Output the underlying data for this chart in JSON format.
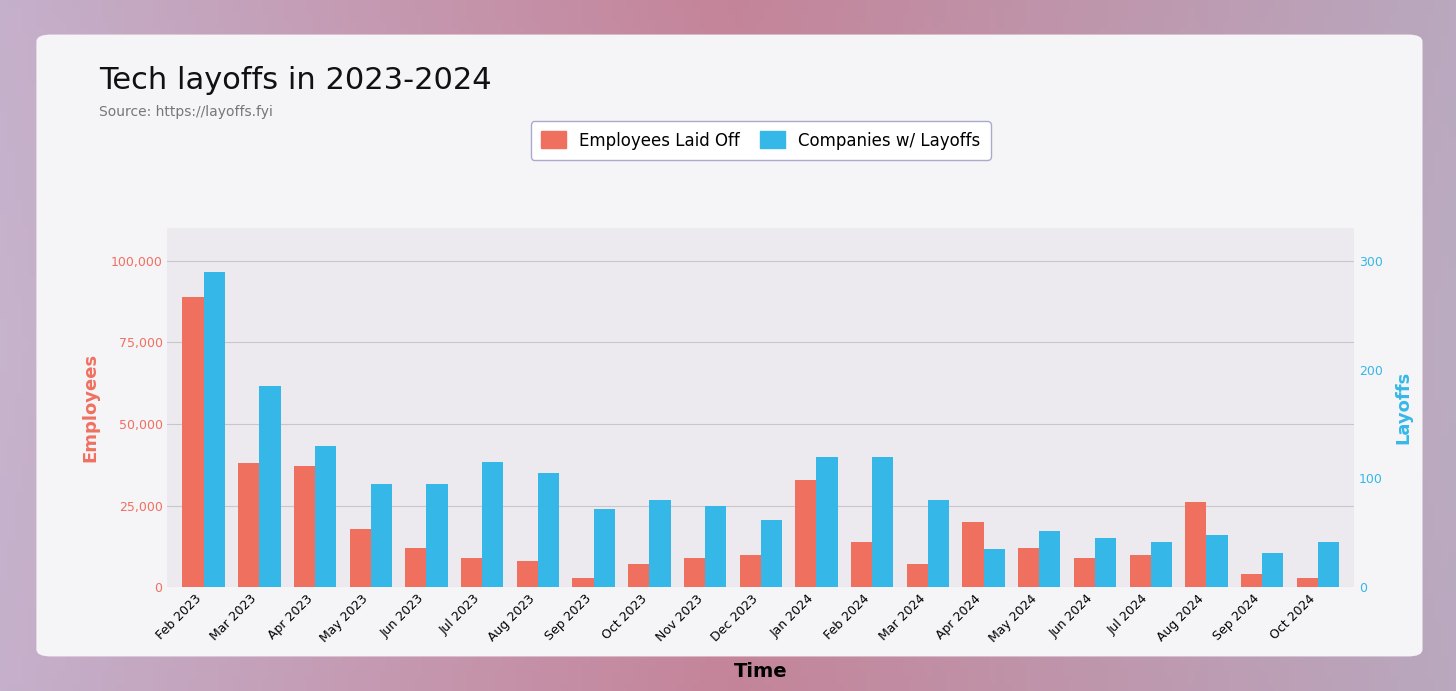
{
  "title": "Tech layoffs in 2023-2024",
  "source": "Source: https://layoffs.fyi",
  "xlabel": "Time",
  "ylabel_left": "Employees",
  "ylabel_right": "Layoffs",
  "bar_color_employees": "#F07060",
  "bar_color_companies": "#35B8E8",
  "legend_labels": [
    "Employees Laid Off",
    "Companies w/ Layoffs"
  ],
  "card_bg": "#F5F4F7",
  "chart_area_bg": "#ECEAEE",
  "categories": [
    "Feb 2023",
    "Mar 2023",
    "Apr 2023",
    "May 2023",
    "Jun 2023",
    "Jul 2023",
    "Aug 2023",
    "Sep 2023",
    "Oct 2023",
    "Nov 2023",
    "Dec 2023",
    "Jan 2024",
    "Feb 2024",
    "Mar 2024",
    "Apr 2024",
    "May 2024",
    "Jun 2024",
    "Jul 2024",
    "Aug 2024",
    "Sep 2024",
    "Oct 2024"
  ],
  "employees_laid_off": [
    89000,
    38000,
    37000,
    18000,
    12000,
    9000,
    8000,
    3000,
    7000,
    9000,
    10000,
    33000,
    14000,
    7000,
    20000,
    12000,
    9000,
    10000,
    26000,
    4000,
    3000
  ],
  "companies_with_layoffs": [
    290,
    185,
    130,
    95,
    95,
    115,
    105,
    72,
    80,
    75,
    62,
    120,
    120,
    80,
    35,
    52,
    45,
    42,
    48,
    32,
    42
  ],
  "ylim_left": [
    0,
    110000
  ],
  "ylim_right": [
    0,
    330
  ],
  "yticks_left": [
    0,
    25000,
    50000,
    75000,
    100000
  ],
  "yticks_right": [
    0,
    100,
    200,
    300
  ],
  "title_fontsize": 22,
  "source_fontsize": 10,
  "axis_label_fontsize": 13,
  "tick_fontsize": 9,
  "legend_fontsize": 12,
  "outer_bg_left": "#C9B8CC",
  "outer_bg_right": "#B8A8BC",
  "outer_bg_center": "#C090A8"
}
